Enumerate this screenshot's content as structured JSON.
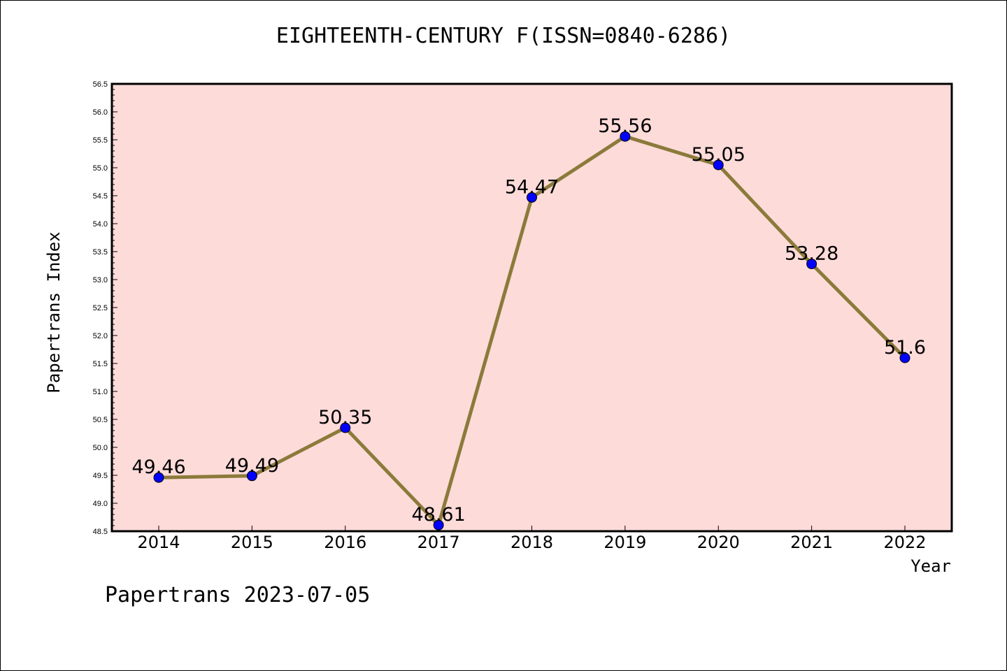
{
  "chart_data": {
    "type": "line",
    "title": "EIGHTEENTH-CENTURY F(ISSN=0840-6286)",
    "xlabel": "Year",
    "ylabel": "Papertrans Index",
    "categories": [
      "2014",
      "2015",
      "2016",
      "2017",
      "2018",
      "2019",
      "2020",
      "2021",
      "2022"
    ],
    "values": [
      49.46,
      49.49,
      50.35,
      48.61,
      54.47,
      55.56,
      55.05,
      53.28,
      51.6
    ],
    "data_labels": [
      "49.46",
      "49.49",
      "50.35",
      "48.61",
      "54.47",
      "55.56",
      "55.05",
      "53.28",
      "51.6"
    ],
    "ylim": [
      48.5,
      56.5
    ],
    "yticks": [
      "48.5",
      "49.0",
      "49.5",
      "50.0",
      "50.5",
      "51.0",
      "51.5",
      "52.0",
      "52.5",
      "53.0",
      "53.5",
      "54.0",
      "54.5",
      "55.0",
      "55.5",
      "56.0",
      "56.5"
    ],
    "grid": false,
    "colors": {
      "plot_background": "#fddbd9",
      "line": "#8b7a3a",
      "marker": "#0000ff"
    }
  },
  "footer": "Papertrans 2023-07-05"
}
